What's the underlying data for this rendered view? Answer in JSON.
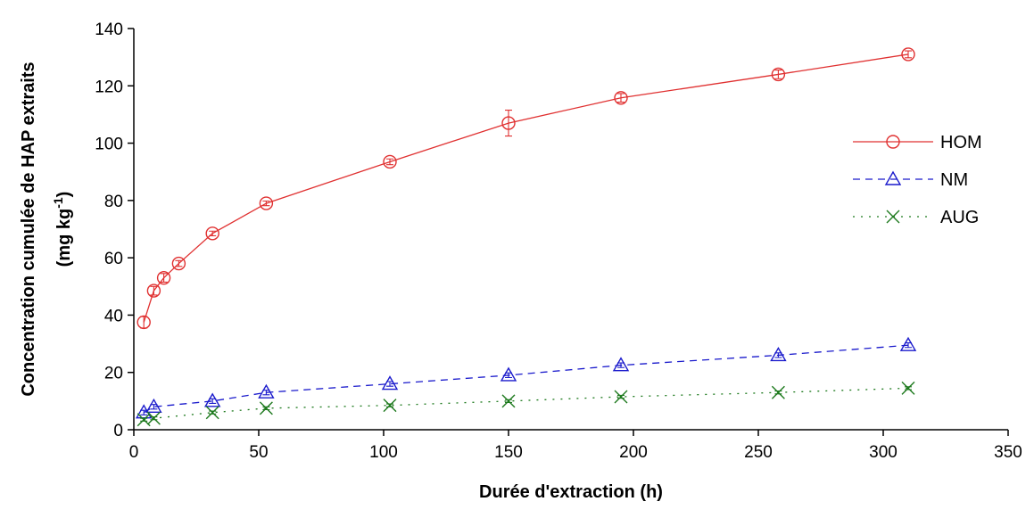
{
  "chart_data": {
    "type": "line",
    "xlabel": "Durée d'extraction (h)",
    "ylabel_line1": "Concentration cumulée de HAP extraits",
    "ylabel_line2_prefix": "(mg kg",
    "ylabel_line2_sup": "-1",
    "ylabel_line2_suffix": ")",
    "xlim": [
      0,
      350
    ],
    "ylim": [
      0,
      140
    ],
    "xticks": [
      0,
      50,
      100,
      150,
      200,
      250,
      300,
      350
    ],
    "yticks": [
      0,
      20,
      40,
      60,
      80,
      100,
      120,
      140
    ],
    "grid": false,
    "legend_position": "right",
    "series": [
      {
        "name": "HOM",
        "color": "#e03030",
        "line_style": "solid",
        "marker": "circle",
        "x": [
          4,
          8,
          12,
          18,
          31.5,
          53,
          102.5,
          150,
          195,
          258,
          310
        ],
        "y": [
          37.5,
          48.5,
          53,
          58,
          68.5,
          79,
          93.5,
          107,
          115.8,
          124,
          131
        ],
        "err": [
          2,
          1.5,
          1.5,
          1,
          0.8,
          0.8,
          1,
          4.5,
          1.5,
          1.5,
          1.2
        ]
      },
      {
        "name": "NM",
        "color": "#1a1acc",
        "line_style": "dashed",
        "marker": "triangle",
        "x": [
          4,
          8,
          31.5,
          53,
          102.5,
          150,
          195,
          258,
          310
        ],
        "y": [
          6,
          8,
          10,
          13,
          16,
          19,
          22.5,
          26,
          29.5
        ],
        "err": [
          0.8,
          0.8,
          0.8,
          0.8,
          0.8,
          0.8,
          0.8,
          0.8,
          0.8
        ]
      },
      {
        "name": "AUG",
        "color": "#1e7a1e",
        "line_style": "dotted",
        "marker": "x",
        "x": [
          4,
          8,
          31.5,
          53,
          102.5,
          150,
          195,
          258,
          310
        ],
        "y": [
          3.5,
          4,
          6,
          7.5,
          8.5,
          10,
          11.5,
          13,
          14.5
        ],
        "err": [
          0.5,
          0.5,
          0.5,
          0.5,
          0.5,
          0.5,
          0.5,
          0.5,
          0.5
        ]
      }
    ]
  }
}
